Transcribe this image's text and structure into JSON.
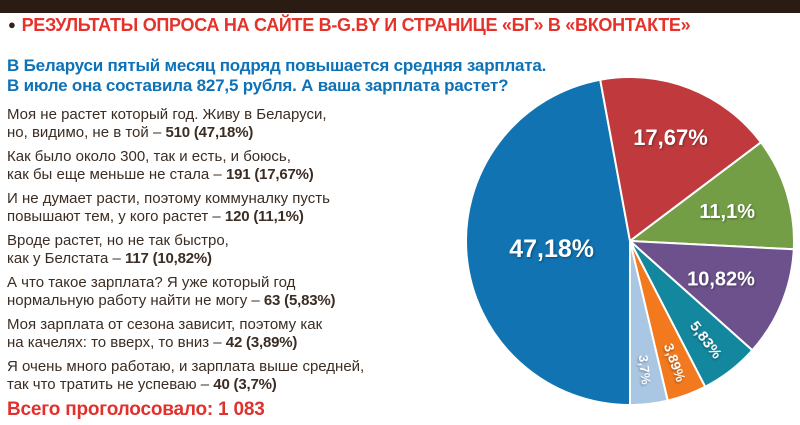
{
  "page": {
    "background": "#ffffff",
    "topbar_color": "#2a1c12"
  },
  "header": {
    "bullet": "●",
    "title": "РЕЗУЛЬТАТЫ ОПРОСА НА САЙТЕ B-G.BY И СТРАНИЦЕ «БГ» В «ВКОНТАКТЕ»",
    "color": "#e5322b"
  },
  "question": {
    "line1": "В Беларуси пятый месяц подряд повышается средняя зарплата.",
    "line2": "В июле она составила 827,5 рубля. А ваша зарплата растет?",
    "color": "#0d72b8"
  },
  "answers": [
    {
      "line1": "Моя не растет который год. Живу в Беларуси,",
      "line2": "но, видимо, не в той – ",
      "bold": "510 (47,18%)"
    },
    {
      "line1": "Как было около 300, так и есть, и боюсь,",
      "line2": "как бы еще меньше не стала – ",
      "bold": "191 (17,67%)"
    },
    {
      "line1": "И не думает расти, поэтому коммуналку пусть",
      "line2": "повышают тем, у кого растет – ",
      "bold": "120 (11,1%)"
    },
    {
      "line1": "Вроде растет, но не так быстро,",
      "line2": "как у Белстата – ",
      "bold": "117 (10,82%)"
    },
    {
      "line1": "А что такое зарплата? Я уже который год",
      "line2": "нормальную работу найти не могу – ",
      "bold": "63 (5,83%)"
    },
    {
      "line1": "Моя зарплата от сезона зависит, поэтому как",
      "line2": "на качелях: то вверх, то вниз – ",
      "bold": "42 (3,89%)"
    },
    {
      "line1": "Я очень много работаю, и зарплата выше средней,",
      "line2": "так что тратить не успеваю – ",
      "bold": "40 (3,7%)"
    }
  ],
  "footer": {
    "total_label": "Всего проголосовало: 1 083",
    "color": "#e0312d"
  },
  "chart_data": {
    "type": "pie",
    "title": "А ваша зарплата растет?",
    "start_angle_deg": 180,
    "direction": "clockwise",
    "total_votes_label": "1 083",
    "slices": [
      {
        "label": "47,18%",
        "value": 47.18,
        "votes": 510,
        "answer": "Моя не растет который год. Живу в Беларуси, но, видимо, не в той",
        "color": "#1173b2",
        "label_r": 0.48,
        "label_rot": 0,
        "font_size": 25
      },
      {
        "label": "17,67%",
        "value": 17.67,
        "votes": 191,
        "answer": "Как было около 300, так и есть, и боюсь, как бы еще меньше не стала",
        "color": "#c03a3d",
        "label_r": 0.68,
        "label_rot": 0,
        "font_size": 22
      },
      {
        "label": "11,1%",
        "value": 11.1,
        "votes": 120,
        "answer": "И не думает расти, поэтому коммуналку пусть повышают тем, у кого растет",
        "color": "#739e45",
        "label_r": 0.62,
        "label_rot": 0,
        "font_size": 20
      },
      {
        "label": "10,82%",
        "value": 10.82,
        "votes": 117,
        "answer": "Вроде растет, но не так быстро, как у Белстата",
        "color": "#6d518c",
        "label_r": 0.6,
        "label_rot": 0,
        "font_size": 20
      },
      {
        "label": "5,83%",
        "value": 5.83,
        "votes": 63,
        "answer": "А что такое зарплата? Я уже который год нормальную работу найти не могу",
        "color": "#12879e",
        "label_r": 0.76,
        "label_rot": 53,
        "font_size": 15
      },
      {
        "label": "3,89%",
        "value": 3.89,
        "votes": 42,
        "answer": "Моя зарплата от сезона зависит, поэтому как на качелях: то вверх, то вниз",
        "color": "#f2791d",
        "label_r": 0.79,
        "label_rot": 70,
        "font_size": 14
      },
      {
        "label": "3,7%",
        "value": 3.7,
        "votes": 40,
        "answer": "Я очень много работаю, и зарплата выше средней, так что тратить не успеваю",
        "color": "#a9c6e3",
        "label_r": 0.79,
        "label_rot": 84,
        "font_size": 13
      }
    ]
  }
}
